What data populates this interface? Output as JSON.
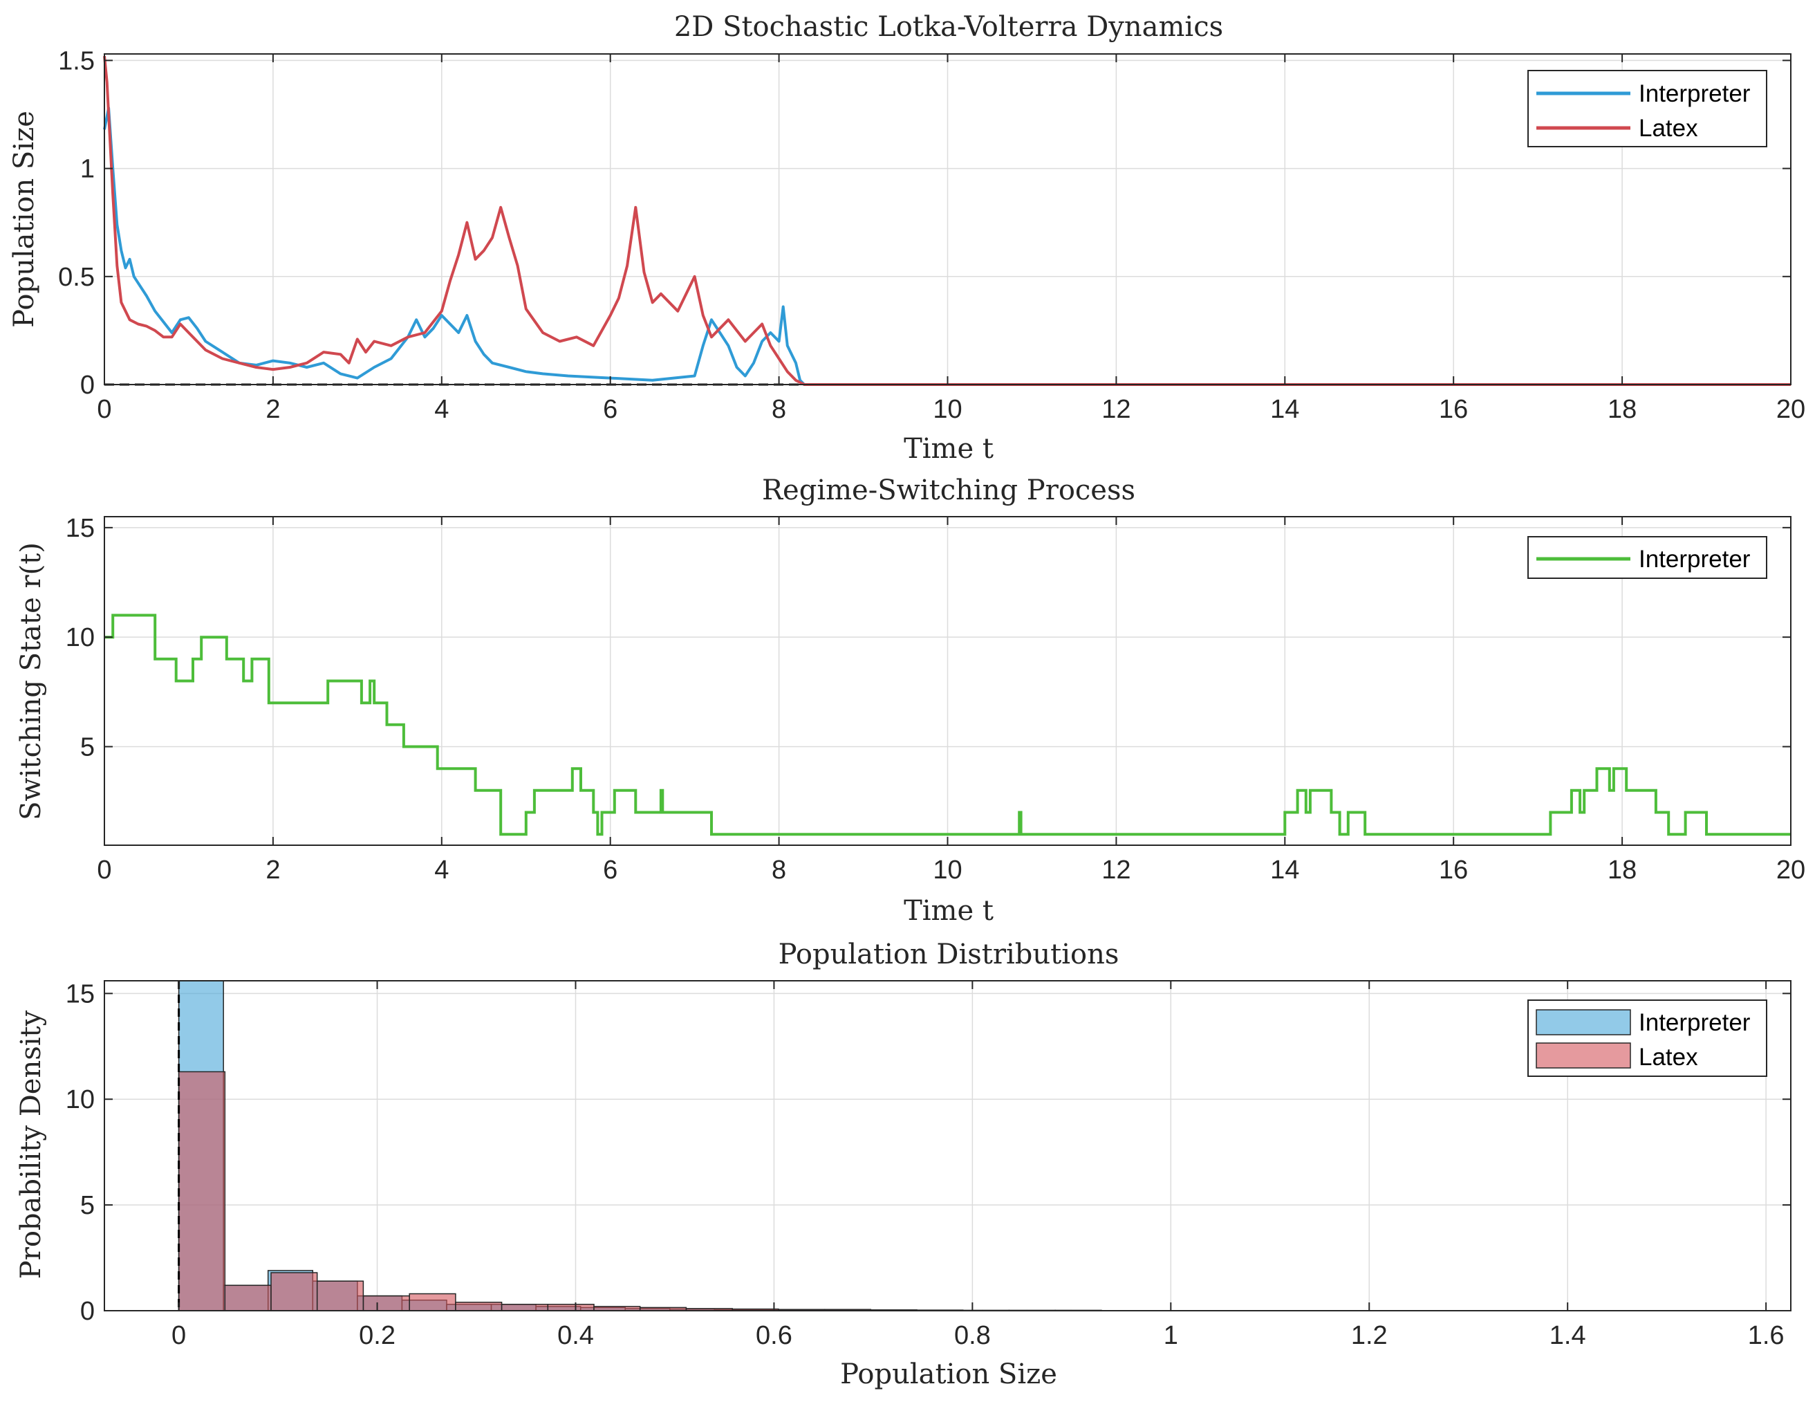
{
  "chart_data": [
    {
      "type": "line",
      "title": "2D Stochastic Lotka-Volterra Dynamics",
      "xlabel": "Time t",
      "ylabel": "Population Size",
      "xlim": [
        0,
        20
      ],
      "ylim": [
        0,
        1.53
      ],
      "xticks": [
        0,
        2,
        4,
        6,
        8,
        10,
        12,
        14,
        16,
        18,
        20
      ],
      "xtick_labels": [
        "0",
        "2",
        "4",
        "6",
        "8",
        "10",
        "12",
        "14",
        "16",
        "18",
        "20"
      ],
      "yticks": [
        0,
        0.5,
        1,
        1.5
      ],
      "ytick_labels": [
        "0",
        "0.5",
        "1",
        "1.5"
      ],
      "grid": true,
      "legend_position": "top-right",
      "reference_line": {
        "y": 0,
        "style": "dashed",
        "color": "#000000"
      },
      "series": [
        {
          "name": "Interpreter",
          "color": "#2f9bd6",
          "points": [
            [
              0,
              1.18
            ],
            [
              0.05,
              1.28
            ],
            [
              0.1,
              1.0
            ],
            [
              0.15,
              0.74
            ],
            [
              0.2,
              0.62
            ],
            [
              0.25,
              0.54
            ],
            [
              0.3,
              0.58
            ],
            [
              0.35,
              0.5
            ],
            [
              0.4,
              0.47
            ],
            [
              0.5,
              0.41
            ],
            [
              0.6,
              0.34
            ],
            [
              0.7,
              0.29
            ],
            [
              0.8,
              0.24
            ],
            [
              0.9,
              0.3
            ],
            [
              1.0,
              0.31
            ],
            [
              1.1,
              0.26
            ],
            [
              1.2,
              0.2
            ],
            [
              1.4,
              0.15
            ],
            [
              1.6,
              0.1
            ],
            [
              1.8,
              0.09
            ],
            [
              2.0,
              0.11
            ],
            [
              2.2,
              0.1
            ],
            [
              2.4,
              0.08
            ],
            [
              2.6,
              0.1
            ],
            [
              2.8,
              0.05
            ],
            [
              3.0,
              0.03
            ],
            [
              3.2,
              0.08
            ],
            [
              3.4,
              0.12
            ],
            [
              3.6,
              0.22
            ],
            [
              3.7,
              0.3
            ],
            [
              3.8,
              0.22
            ],
            [
              3.9,
              0.26
            ],
            [
              4.0,
              0.32
            ],
            [
              4.1,
              0.28
            ],
            [
              4.2,
              0.24
            ],
            [
              4.3,
              0.32
            ],
            [
              4.4,
              0.2
            ],
            [
              4.5,
              0.14
            ],
            [
              4.6,
              0.1
            ],
            [
              4.8,
              0.08
            ],
            [
              5.0,
              0.06
            ],
            [
              5.2,
              0.05
            ],
            [
              5.5,
              0.04
            ],
            [
              6.0,
              0.03
            ],
            [
              6.5,
              0.02
            ],
            [
              7.0,
              0.04
            ],
            [
              7.1,
              0.18
            ],
            [
              7.2,
              0.3
            ],
            [
              7.3,
              0.24
            ],
            [
              7.4,
              0.18
            ],
            [
              7.5,
              0.08
            ],
            [
              7.6,
              0.04
            ],
            [
              7.7,
              0.1
            ],
            [
              7.8,
              0.2
            ],
            [
              7.9,
              0.24
            ],
            [
              8.0,
              0.2
            ],
            [
              8.05,
              0.36
            ],
            [
              8.1,
              0.18
            ],
            [
              8.2,
              0.1
            ],
            [
              8.25,
              0.02
            ],
            [
              8.3,
              0.0
            ],
            [
              20.0,
              0.0
            ]
          ]
        },
        {
          "name": "Latex",
          "color": "#d0484f",
          "points": [
            [
              0,
              1.52
            ],
            [
              0.03,
              1.4
            ],
            [
              0.06,
              1.18
            ],
            [
              0.1,
              0.88
            ],
            [
              0.15,
              0.55
            ],
            [
              0.2,
              0.38
            ],
            [
              0.3,
              0.3
            ],
            [
              0.4,
              0.28
            ],
            [
              0.5,
              0.27
            ],
            [
              0.6,
              0.25
            ],
            [
              0.7,
              0.22
            ],
            [
              0.8,
              0.22
            ],
            [
              0.9,
              0.28
            ],
            [
              1.0,
              0.24
            ],
            [
              1.1,
              0.2
            ],
            [
              1.2,
              0.16
            ],
            [
              1.4,
              0.12
            ],
            [
              1.6,
              0.1
            ],
            [
              1.8,
              0.08
            ],
            [
              2.0,
              0.07
            ],
            [
              2.2,
              0.08
            ],
            [
              2.4,
              0.1
            ],
            [
              2.6,
              0.15
            ],
            [
              2.8,
              0.14
            ],
            [
              2.9,
              0.1
            ],
            [
              3.0,
              0.21
            ],
            [
              3.1,
              0.15
            ],
            [
              3.2,
              0.2
            ],
            [
              3.4,
              0.18
            ],
            [
              3.6,
              0.22
            ],
            [
              3.8,
              0.24
            ],
            [
              4.0,
              0.34
            ],
            [
              4.1,
              0.48
            ],
            [
              4.2,
              0.6
            ],
            [
              4.3,
              0.75
            ],
            [
              4.4,
              0.58
            ],
            [
              4.5,
              0.62
            ],
            [
              4.6,
              0.68
            ],
            [
              4.7,
              0.82
            ],
            [
              4.8,
              0.68
            ],
            [
              4.9,
              0.55
            ],
            [
              5.0,
              0.35
            ],
            [
              5.2,
              0.24
            ],
            [
              5.4,
              0.2
            ],
            [
              5.6,
              0.22
            ],
            [
              5.8,
              0.18
            ],
            [
              6.0,
              0.32
            ],
            [
              6.1,
              0.4
            ],
            [
              6.2,
              0.55
            ],
            [
              6.3,
              0.82
            ],
            [
              6.4,
              0.52
            ],
            [
              6.5,
              0.38
            ],
            [
              6.6,
              0.42
            ],
            [
              6.8,
              0.34
            ],
            [
              7.0,
              0.5
            ],
            [
              7.1,
              0.32
            ],
            [
              7.2,
              0.22
            ],
            [
              7.4,
              0.3
            ],
            [
              7.6,
              0.2
            ],
            [
              7.8,
              0.28
            ],
            [
              7.9,
              0.18
            ],
            [
              8.0,
              0.12
            ],
            [
              8.1,
              0.06
            ],
            [
              8.2,
              0.02
            ],
            [
              8.3,
              0.0
            ],
            [
              20.0,
              0.0
            ]
          ]
        }
      ]
    },
    {
      "type": "line",
      "title": "Regime-Switching Process",
      "xlabel": "Time t",
      "ylabel": "Switching State r(t)",
      "xlim": [
        0,
        20
      ],
      "ylim": [
        0.5,
        15.5
      ],
      "xticks": [
        0,
        2,
        4,
        6,
        8,
        10,
        12,
        14,
        16,
        18,
        20
      ],
      "xtick_labels": [
        "0",
        "2",
        "4",
        "6",
        "8",
        "10",
        "12",
        "14",
        "16",
        "18",
        "20"
      ],
      "yticks": [
        5,
        10,
        15
      ],
      "ytick_labels": [
        "5",
        "10",
        "15"
      ],
      "grid": true,
      "legend_position": "top-right",
      "series": [
        {
          "name": "Interpreter",
          "color": "#4dbd3a",
          "step_points": [
            [
              0,
              10
            ],
            [
              0.1,
              11
            ],
            [
              0.6,
              9
            ],
            [
              0.85,
              8
            ],
            [
              1.05,
              9
            ],
            [
              1.15,
              10
            ],
            [
              1.45,
              9
            ],
            [
              1.65,
              8
            ],
            [
              1.75,
              9
            ],
            [
              1.95,
              7
            ],
            [
              2.65,
              8
            ],
            [
              3.05,
              7
            ],
            [
              3.15,
              8
            ],
            [
              3.2,
              7
            ],
            [
              3.35,
              6
            ],
            [
              3.55,
              5
            ],
            [
              3.95,
              4
            ],
            [
              4.4,
              3
            ],
            [
              4.7,
              1
            ],
            [
              5.0,
              2
            ],
            [
              5.1,
              3
            ],
            [
              5.55,
              4
            ],
            [
              5.65,
              3
            ],
            [
              5.8,
              2
            ],
            [
              5.85,
              1
            ],
            [
              5.9,
              2
            ],
            [
              6.05,
              3
            ],
            [
              6.3,
              2
            ],
            [
              6.6,
              3
            ],
            [
              6.62,
              2
            ],
            [
              7.2,
              1
            ],
            [
              10.85,
              2
            ],
            [
              10.87,
              1
            ],
            [
              14.0,
              2
            ],
            [
              14.15,
              3
            ],
            [
              14.25,
              2
            ],
            [
              14.3,
              3
            ],
            [
              14.55,
              2
            ],
            [
              14.65,
              1
            ],
            [
              14.75,
              2
            ],
            [
              14.95,
              1
            ],
            [
              17.15,
              2
            ],
            [
              17.4,
              3
            ],
            [
              17.5,
              2
            ],
            [
              17.55,
              3
            ],
            [
              17.7,
              4
            ],
            [
              17.85,
              3
            ],
            [
              17.9,
              4
            ],
            [
              18.05,
              3
            ],
            [
              18.4,
              2
            ],
            [
              18.55,
              1
            ],
            [
              18.75,
              2
            ],
            [
              19.0,
              1
            ],
            [
              20.0,
              1
            ]
          ]
        }
      ]
    },
    {
      "type": "histogram",
      "title": "Population Distributions",
      "xlabel": "Population Size",
      "ylabel": "Probability Density",
      "xlim": [
        -0.075,
        1.625
      ],
      "ylim": [
        0,
        15.6
      ],
      "xticks": [
        0,
        0.2,
        0.4,
        0.6,
        0.8,
        1,
        1.2,
        1.4,
        1.6
      ],
      "xtick_labels": [
        "0",
        "0.2",
        "0.4",
        "0.6",
        "0.8",
        "1",
        "1.2",
        "1.4",
        "1.6"
      ],
      "yticks": [
        0,
        5,
        10,
        15
      ],
      "ytick_labels": [
        "0",
        "5",
        "10",
        "15"
      ],
      "grid": true,
      "legend_position": "top-right",
      "reference_line": {
        "x": 0,
        "style": "dashed",
        "color": "#000000"
      },
      "series": [
        {
          "name": "Interpreter",
          "color": "#4aa6d9",
          "bin_start": 0,
          "bin_width": 0.045,
          "values": [
            15.6,
            1.2,
            1.9,
            1.4,
            0.7,
            0.5,
            0.3,
            0.3,
            0.2,
            0.15,
            0.1,
            0.08,
            0.05,
            0.04,
            0.03,
            0.02,
            0.02,
            0.01,
            0.01,
            0.01
          ]
        },
        {
          "name": "Latex",
          "color": "#d4575d",
          "bin_start": 0,
          "bin_width": 0.0465,
          "values": [
            11.3,
            1.2,
            1.8,
            1.4,
            0.7,
            0.8,
            0.4,
            0.3,
            0.3,
            0.2,
            0.15,
            0.1,
            0.08,
            0.06,
            0.06,
            0.04,
            0.03,
            0.02,
            0.02,
            0.02
          ]
        }
      ]
    }
  ]
}
